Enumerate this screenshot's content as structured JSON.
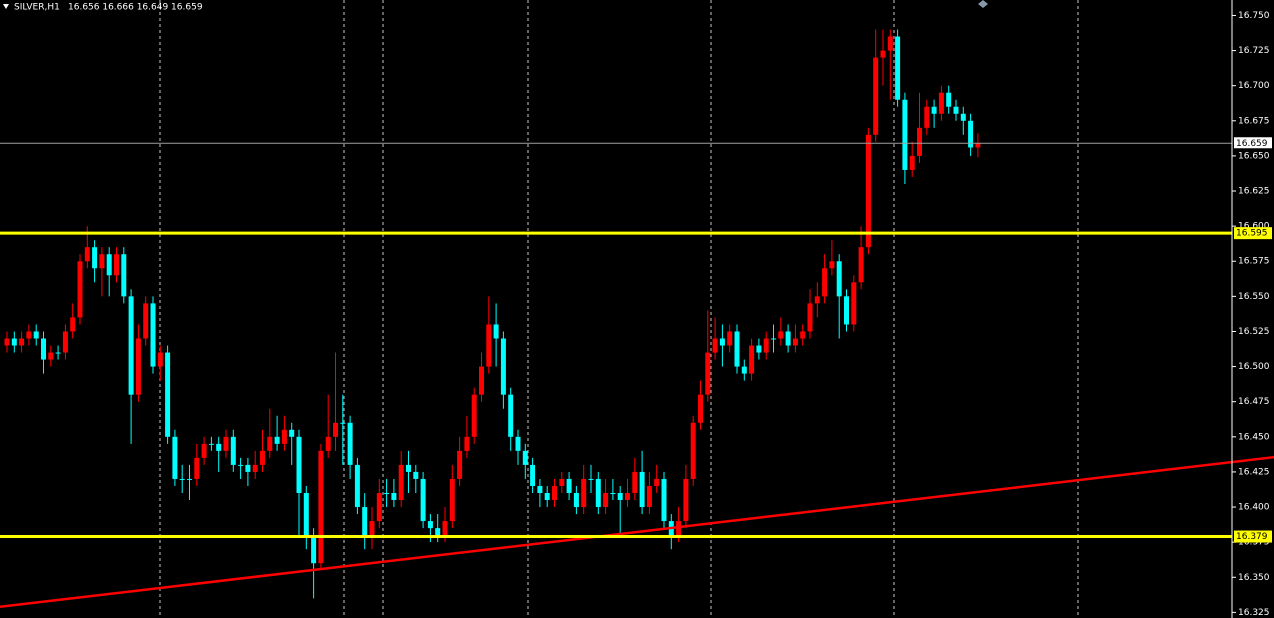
{
  "chart_data": {
    "type": "candlestick",
    "title": "SILVER,H1",
    "subtitle": "16.656 16.666 16.649 16.659",
    "up_color": "#ff0000",
    "down_color": "#00ffff",
    "ylim": [
      16.321,
      16.761
    ],
    "yticks": [
      16.325,
      {
        "value": 16.35,
        "label": "16.350"
      },
      16.375,
      {
        "value": 16.4,
        "label": "16.400"
      },
      16.425,
      {
        "value": 16.45,
        "label": "16.450"
      },
      16.475,
      {
        "value": 16.5,
        "label": "16.500"
      },
      16.525,
      {
        "value": 16.55,
        "label": "16.550"
      },
      16.575,
      {
        "value": 16.6,
        "label": "16.600"
      },
      16.625,
      {
        "value": 16.65,
        "label": "16.650"
      },
      16.675,
      {
        "value": 16.7,
        "label": "16.700"
      },
      16.725,
      {
        "value": 16.75,
        "label": "16.750"
      }
    ],
    "open": [
      16.515,
      16.52,
      16.515,
      16.52,
      16.525,
      16.52,
      16.505,
      16.51,
      16.51,
      16.525,
      16.535,
      16.575,
      16.585,
      16.57,
      16.58,
      16.565,
      16.58,
      16.55,
      16.48,
      16.52,
      16.545,
      16.5,
      16.51,
      16.45,
      16.42,
      16.42,
      16.42,
      16.435,
      16.445,
      16.445,
      16.44,
      16.45,
      16.43,
      16.43,
      16.425,
      16.43,
      16.44,
      16.45,
      16.445,
      16.455,
      16.45,
      16.41,
      16.38,
      16.36,
      16.44,
      16.45,
      16.46,
      16.46,
      16.43,
      16.4,
      16.38,
      16.39,
      16.41,
      16.41,
      16.405,
      16.43,
      16.425,
      16.42,
      16.39,
      16.385,
      16.38,
      16.39,
      16.42,
      16.44,
      16.45,
      16.48,
      16.5,
      16.53,
      16.52,
      16.48,
      16.45,
      16.44,
      16.43,
      16.415,
      16.41,
      16.405,
      16.415,
      16.42,
      16.41,
      16.4,
      16.42,
      16.42,
      16.4,
      16.41,
      16.41,
      16.405,
      16.41,
      16.425,
      16.4,
      16.415,
      16.42,
      16.39,
      16.38,
      16.39,
      16.42,
      16.46,
      16.48,
      16.51,
      16.52,
      16.515,
      16.525,
      16.5,
      16.495,
      16.515,
      16.51,
      16.52,
      16.52,
      16.525,
      16.515,
      16.52,
      16.525,
      16.545,
      16.55,
      16.57,
      16.575,
      16.55,
      16.53,
      16.56,
      16.585,
      16.665,
      16.72,
      16.725,
      16.735,
      16.69,
      16.64,
      16.65,
      16.67,
      16.685,
      16.68,
      16.695,
      16.685,
      16.68,
      16.675,
      16.656
    ],
    "high": [
      16.525,
      16.525,
      16.525,
      16.53,
      16.53,
      16.525,
      16.515,
      16.515,
      16.53,
      16.545,
      16.58,
      16.6,
      16.59,
      16.585,
      16.585,
      16.585,
      16.585,
      16.555,
      16.53,
      16.55,
      16.55,
      16.515,
      16.515,
      16.455,
      16.43,
      16.43,
      16.445,
      16.45,
      16.45,
      16.45,
      16.455,
      16.455,
      16.435,
      16.435,
      16.44,
      16.455,
      16.47,
      16.465,
      16.465,
      16.46,
      16.455,
      16.415,
      16.385,
      16.445,
      16.48,
      16.51,
      16.48,
      16.465,
      16.435,
      16.41,
      16.4,
      16.42,
      16.42,
      16.42,
      16.44,
      16.44,
      16.43,
      16.425,
      16.395,
      16.395,
      16.4,
      16.43,
      16.45,
      16.465,
      16.485,
      16.51,
      16.55,
      16.545,
      16.525,
      16.485,
      16.455,
      16.445,
      16.435,
      16.42,
      16.415,
      16.42,
      16.425,
      16.425,
      16.415,
      16.43,
      16.43,
      16.425,
      16.42,
      16.42,
      16.415,
      16.42,
      16.435,
      16.44,
      16.425,
      16.43,
      16.425,
      16.395,
      16.4,
      16.43,
      16.465,
      16.49,
      16.54,
      16.535,
      16.53,
      16.53,
      16.53,
      16.505,
      16.52,
      16.52,
      16.525,
      16.53,
      16.535,
      16.53,
      16.53,
      16.53,
      16.555,
      16.56,
      16.58,
      16.59,
      16.58,
      16.555,
      16.565,
      16.6,
      16.67,
      16.74,
      16.74,
      16.74,
      16.74,
      16.695,
      16.66,
      16.695,
      16.69,
      16.69,
      16.7,
      16.7,
      16.69,
      16.685,
      16.68,
      16.666
    ],
    "low": [
      16.51,
      16.51,
      16.51,
      16.515,
      16.515,
      16.495,
      16.5,
      16.505,
      16.505,
      16.52,
      16.53,
      16.57,
      16.56,
      16.55,
      16.55,
      16.56,
      16.545,
      16.445,
      16.475,
      16.515,
      16.495,
      16.49,
      16.445,
      16.415,
      16.41,
      16.405,
      16.415,
      16.43,
      16.44,
      16.425,
      16.435,
      16.425,
      16.42,
      16.415,
      16.42,
      16.425,
      16.435,
      16.44,
      16.44,
      16.43,
      16.38,
      16.37,
      16.335,
      16.355,
      16.435,
      16.44,
      16.43,
      16.42,
      16.395,
      16.37,
      16.37,
      16.385,
      16.4,
      16.4,
      16.4,
      16.41,
      16.41,
      16.385,
      16.375,
      16.375,
      16.375,
      16.385,
      16.415,
      16.435,
      16.445,
      16.475,
      16.495,
      16.5,
      16.47,
      16.44,
      16.43,
      16.42,
      16.41,
      16.4,
      16.4,
      16.4,
      16.41,
      16.405,
      16.395,
      16.395,
      16.41,
      16.395,
      16.395,
      16.405,
      16.38,
      16.4,
      16.405,
      16.395,
      16.395,
      16.41,
      16.385,
      16.37,
      16.375,
      16.385,
      16.415,
      16.455,
      16.475,
      16.505,
      16.5,
      16.51,
      16.495,
      16.49,
      16.49,
      16.505,
      16.505,
      16.51,
      16.515,
      16.51,
      16.51,
      16.515,
      16.52,
      16.535,
      16.545,
      16.565,
      16.52,
      16.525,
      16.525,
      16.555,
      16.58,
      16.66,
      16.7,
      16.69,
      16.685,
      16.63,
      16.635,
      16.645,
      16.665,
      16.67,
      16.675,
      16.68,
      16.675,
      16.665,
      16.65,
      16.649
    ],
    "close": [
      16.52,
      16.515,
      16.52,
      16.525,
      16.52,
      16.505,
      16.51,
      16.51,
      16.525,
      16.535,
      16.575,
      16.585,
      16.57,
      16.58,
      16.565,
      16.58,
      16.55,
      16.48,
      16.52,
      16.545,
      16.5,
      16.51,
      16.45,
      16.42,
      16.42,
      16.42,
      16.435,
      16.445,
      16.445,
      16.44,
      16.45,
      16.43,
      16.43,
      16.425,
      16.43,
      16.44,
      16.45,
      16.445,
      16.455,
      16.45,
      16.41,
      16.38,
      16.36,
      16.44,
      16.45,
      16.46,
      16.46,
      16.43,
      16.4,
      16.38,
      16.39,
      16.41,
      16.41,
      16.405,
      16.43,
      16.425,
      16.42,
      16.39,
      16.385,
      16.38,
      16.39,
      16.42,
      16.44,
      16.45,
      16.48,
      16.5,
      16.53,
      16.52,
      16.48,
      16.45,
      16.44,
      16.43,
      16.415,
      16.41,
      16.405,
      16.415,
      16.42,
      16.41,
      16.4,
      16.42,
      16.42,
      16.4,
      16.41,
      16.41,
      16.405,
      16.41,
      16.425,
      16.4,
      16.415,
      16.42,
      16.39,
      16.38,
      16.39,
      16.42,
      16.46,
      16.48,
      16.51,
      16.52,
      16.515,
      16.525,
      16.5,
      16.495,
      16.515,
      16.51,
      16.52,
      16.52,
      16.525,
      16.515,
      16.52,
      16.525,
      16.545,
      16.55,
      16.57,
      16.575,
      16.55,
      16.53,
      16.56,
      16.585,
      16.665,
      16.72,
      16.725,
      16.735,
      16.69,
      16.64,
      16.65,
      16.67,
      16.685,
      16.68,
      16.695,
      16.685,
      16.68,
      16.675,
      16.656,
      16.659
    ],
    "levels": [
      {
        "value": 16.595,
        "color": "#ffff00"
      },
      {
        "value": 16.379,
        "color": "#ffff00"
      }
    ],
    "price_line": {
      "value": 16.659,
      "color": "#a0a0a0"
    },
    "trendline": {
      "color": "#ff0000",
      "values": [
        16.329,
        16.432
      ]
    }
  }
}
